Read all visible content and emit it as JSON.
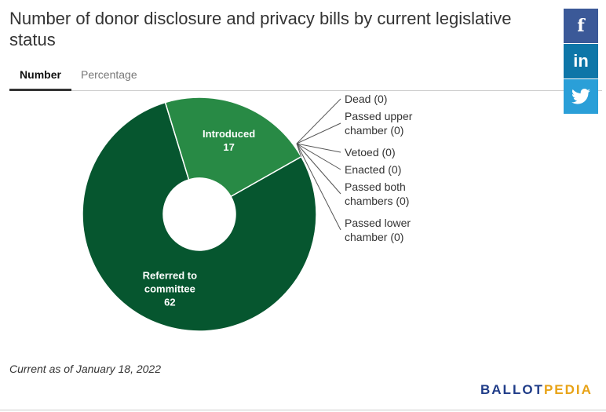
{
  "title": "Number of donor disclosure and privacy bills by current legislative status",
  "tabs": [
    {
      "label": "Number",
      "active": true
    },
    {
      "label": "Percentage",
      "active": false
    }
  ],
  "share": {
    "facebook": {
      "icon": "facebook-icon",
      "glyph": "f",
      "color": "#3b5998"
    },
    "linkedin": {
      "icon": "linkedin-icon",
      "glyph": "in",
      "color": "#0e76a8"
    },
    "twitter": {
      "icon": "twitter-icon",
      "color": "#2a9fd8"
    }
  },
  "chart_data": {
    "type": "pie",
    "donut": true,
    "slices": [
      {
        "name": "Referred to committee",
        "value": 62,
        "color": "#06562f",
        "label_lines": [
          "Referred to",
          "committee",
          "62"
        ]
      },
      {
        "name": "Introduced",
        "value": 17,
        "color": "#288a45",
        "label_lines": [
          "Introduced",
          "17"
        ]
      },
      {
        "name": "Dead",
        "value": 0,
        "label_lines": [
          "Dead (0)"
        ]
      },
      {
        "name": "Passed upper chamber",
        "value": 0,
        "label_lines": [
          "Passed upper",
          "chamber (0)"
        ]
      },
      {
        "name": "Vetoed",
        "value": 0,
        "label_lines": [
          "Vetoed (0)"
        ]
      },
      {
        "name": "Enacted",
        "value": 0,
        "label_lines": [
          "Enacted (0)"
        ]
      },
      {
        "name": "Passed both chambers",
        "value": 0,
        "label_lines": [
          "Passed both",
          "chambers (0)"
        ]
      },
      {
        "name": "Passed lower chamber",
        "value": 0,
        "label_lines": [
          "Passed lower",
          "chamber (0)"
        ]
      }
    ]
  },
  "footnote": "Current as of January 18, 2022",
  "logo": {
    "part1": "BALLOT",
    "part2": "PEDIA"
  }
}
